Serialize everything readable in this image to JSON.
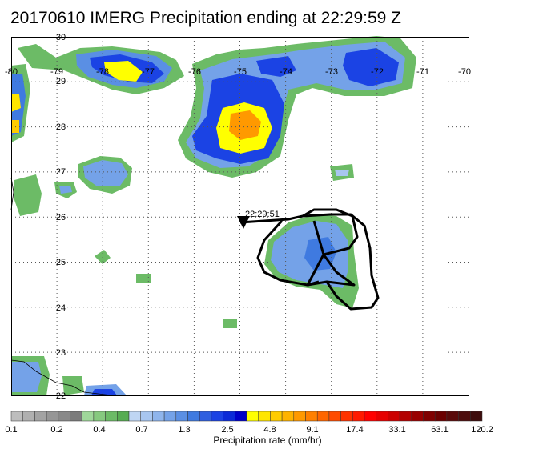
{
  "title": "20170610 IMERG Precipitation ending at 22:29:59 Z",
  "map": {
    "lon_labels": [
      "-80",
      "-79",
      "-78",
      "-77",
      "-76",
      "-75",
      "-74",
      "-73",
      "-72",
      "-71",
      "-70"
    ],
    "lat_labels": [
      "30",
      "29",
      "28",
      "27",
      "26",
      "25",
      "24",
      "23",
      "22"
    ],
    "grid_style": "dotted",
    "track_time_label": "22:29:51"
  },
  "colorbar": {
    "label": "Precipitation rate (mm/hr)",
    "tick_labels": [
      "0.1",
      "0.2",
      "0.4",
      "0.7",
      "1.3",
      "2.5",
      "4.8",
      "9.1",
      "17.4",
      "33.1",
      "63.1",
      "120.2"
    ],
    "colors": [
      "#bdbdbd",
      "#b0b0b0",
      "#a3a3a3",
      "#969696",
      "#898989",
      "#7c7c7c",
      "#9fd79a",
      "#86c97f",
      "#6cbb66",
      "#57ad52",
      "#bfd6f3",
      "#a8c6f0",
      "#8fb5ec",
      "#74a2e8",
      "#5a8fe4",
      "#3f7ae0",
      "#2f5fe0",
      "#1b43e4",
      "#0b2ad8",
      "#0000c8",
      "#ffff00",
      "#ffe600",
      "#ffcc00",
      "#ffb300",
      "#ff9900",
      "#ff8000",
      "#ff6600",
      "#ff4c00",
      "#ff3300",
      "#ff1a00",
      "#ff0000",
      "#e60000",
      "#cc0000",
      "#b30000",
      "#990000",
      "#800000",
      "#6b0000",
      "#5a0a0a",
      "#4d0d0d",
      "#3d0d0d"
    ]
  }
}
